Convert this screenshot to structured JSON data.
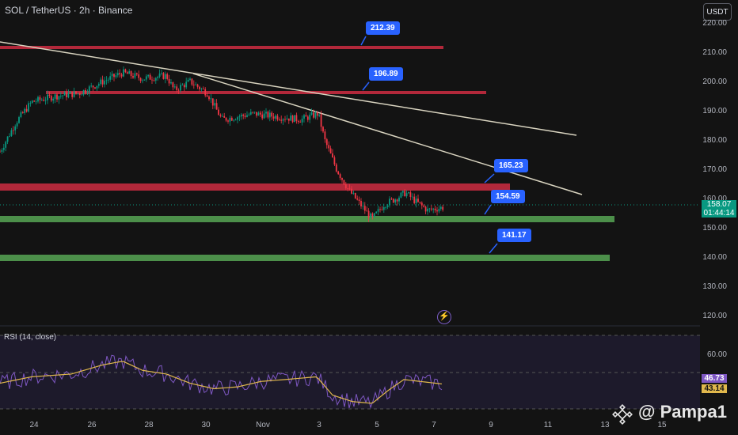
{
  "header": {
    "title": "SOL / TetherUS · 2h · Binance",
    "currency_button": "USDT"
  },
  "yaxis": {
    "ticks": [
      "220.00",
      "210.00",
      "200.00",
      "190.00",
      "180.00",
      "170.00",
      "160.00",
      "150.00",
      "140.00",
      "130.00",
      "120.00"
    ],
    "tick_values": [
      220,
      210,
      200,
      190,
      180,
      170,
      160,
      150,
      140,
      130,
      120
    ]
  },
  "xaxis": {
    "ticks": [
      "24",
      "26",
      "28",
      "30",
      "Nov",
      "3",
      "5",
      "7",
      "9",
      "11",
      "13",
      "15"
    ]
  },
  "levels": [
    {
      "label": "212.39",
      "price": 212.39,
      "kind": "resistance"
    },
    {
      "label": "196.89",
      "price": 196.89,
      "kind": "resistance"
    },
    {
      "label": "165.23",
      "price": 165.23,
      "kind": "resistance"
    },
    {
      "label": "154.59",
      "price": 154.59,
      "kind": "support"
    },
    {
      "label": "141.17",
      "price": 141.17,
      "kind": "support"
    }
  ],
  "current_price": {
    "value": "158.07",
    "countdown": "01:44:14"
  },
  "rsi": {
    "label": "RSI (14, close)",
    "tick": "60.00",
    "value": "46.73",
    "ma_value": "43.14"
  },
  "watermark": "@ Pampa1",
  "colors": {
    "background": "#131313",
    "up": "#089981",
    "down": "#f23645",
    "resistance": "#b2283a",
    "support": "#4c8f4a",
    "tag": "#2962ff",
    "rsi_line": "#7e57c2",
    "rsi_ma": "#e0b84c"
  }
}
